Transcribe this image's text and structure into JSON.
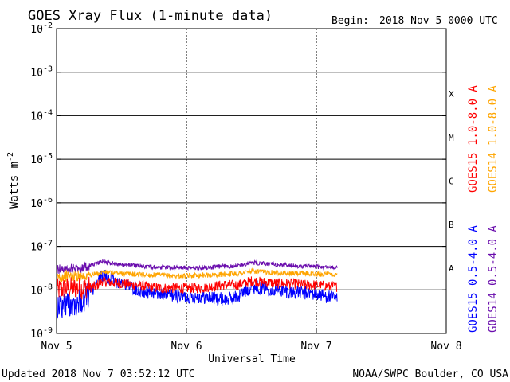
{
  "chart_data": {
    "type": "line",
    "title": "GOES Xray Flux (1-minute data)",
    "begin_label": "Begin:",
    "begin_value": "2018 Nov 5 0000 UTC",
    "xlabel": "Universal Time",
    "ylabel": "Watts m",
    "ylabel_sup": "-2",
    "x_ticks": [
      "Nov 5",
      "Nov 6",
      "Nov 7",
      "Nov 8"
    ],
    "x_range_days": [
      0,
      3
    ],
    "y_scale": "log",
    "ylim": [
      1e-09,
      0.01
    ],
    "y_ticks": [
      {
        "base": "10",
        "exp": "-2"
      },
      {
        "base": "10",
        "exp": "-3"
      },
      {
        "base": "10",
        "exp": "-4"
      },
      {
        "base": "10",
        "exp": "-5"
      },
      {
        "base": "10",
        "exp": "-6"
      },
      {
        "base": "10",
        "exp": "-7"
      },
      {
        "base": "10",
        "exp": "-8"
      },
      {
        "base": "10",
        "exp": "-9"
      }
    ],
    "flare_classes": [
      "X",
      "M",
      "C",
      "B",
      "A"
    ],
    "grid": true,
    "series": [
      {
        "name": "GOES15 1.0-8.0 A",
        "color": "#ff0000",
        "x": [
          0.0,
          0.1,
          0.2,
          0.3,
          0.35,
          0.4,
          0.5,
          0.6,
          0.7,
          0.8,
          0.9,
          1.0,
          1.1,
          1.2,
          1.3,
          1.4,
          1.5,
          1.6,
          1.7,
          1.8,
          1.9,
          2.0,
          2.1,
          2.16
        ],
        "y": [
          1e-08,
          1.1e-08,
          1.1e-08,
          1.2e-08,
          1.6e-08,
          1.5e-08,
          1.4e-08,
          1.3e-08,
          1.2e-08,
          1.1e-08,
          1.1e-08,
          1.1e-08,
          1.1e-08,
          1.2e-08,
          1.3e-08,
          1.3e-08,
          1.6e-08,
          1.5e-08,
          1.4e-08,
          1.4e-08,
          1.3e-08,
          1.3e-08,
          1.2e-08,
          1.2e-08
        ]
      },
      {
        "name": "GOES14 1.0-8.0 A",
        "color": "#ffa500",
        "x": [
          0.0,
          0.1,
          0.2,
          0.3,
          0.35,
          0.4,
          0.5,
          0.6,
          0.7,
          0.8,
          0.9,
          1.0,
          1.1,
          1.2,
          1.3,
          1.4,
          1.5,
          1.6,
          1.7,
          1.8,
          1.9,
          2.0,
          2.1,
          2.16
        ],
        "y": [
          2e-08,
          2.1e-08,
          2.1e-08,
          2.3e-08,
          2.6e-08,
          2.5e-08,
          2.4e-08,
          2.3e-08,
          2.2e-08,
          2.2e-08,
          2.1e-08,
          2.1e-08,
          2.2e-08,
          2.2e-08,
          2.3e-08,
          2.4e-08,
          2.7e-08,
          2.6e-08,
          2.5e-08,
          2.4e-08,
          2.4e-08,
          2.3e-08,
          2.3e-08,
          2.2e-08
        ]
      },
      {
        "name": "GOES15 0.5-4.0 A",
        "color": "#0000ff",
        "x": [
          0.0,
          0.1,
          0.2,
          0.3,
          0.35,
          0.4,
          0.5,
          0.6,
          0.7,
          0.8,
          0.9,
          1.0,
          1.1,
          1.2,
          1.3,
          1.4,
          1.5,
          1.6,
          1.7,
          1.8,
          1.9,
          2.0,
          2.1,
          2.16
        ],
        "y": [
          4e-09,
          5e-09,
          6e-09,
          1.2e-08,
          2.2e-08,
          1.8e-08,
          1.4e-08,
          1.1e-08,
          9e-09,
          8e-09,
          7.5e-09,
          7e-09,
          7e-09,
          6.5e-09,
          6e-09,
          7e-09,
          1.2e-08,
          1.1e-08,
          1e-08,
          9e-09,
          8.5e-09,
          8e-09,
          7e-09,
          6e-09
        ]
      },
      {
        "name": "GOES14 0.5-4.0 A",
        "color": "#6a0dad",
        "x": [
          0.0,
          0.1,
          0.2,
          0.3,
          0.35,
          0.4,
          0.5,
          0.6,
          0.7,
          0.8,
          0.9,
          1.0,
          1.1,
          1.2,
          1.3,
          1.4,
          1.5,
          1.6,
          1.7,
          1.8,
          1.9,
          2.0,
          2.1,
          2.16
        ],
        "y": [
          3e-08,
          3.1e-08,
          3.2e-08,
          4e-08,
          4.5e-08,
          4.2e-08,
          3.8e-08,
          3.6e-08,
          3.4e-08,
          3.3e-08,
          3.3e-08,
          3.2e-08,
          3.2e-08,
          3.3e-08,
          3.5e-08,
          3.6e-08,
          4.2e-08,
          4e-08,
          3.8e-08,
          3.6e-08,
          3.5e-08,
          3.4e-08,
          3.3e-08,
          3.2e-08
        ]
      }
    ]
  },
  "footer": {
    "updated": "Updated 2018 Nov  7 03:52:12 UTC",
    "credit": "NOAA/SWPC Boulder, CO USA"
  }
}
